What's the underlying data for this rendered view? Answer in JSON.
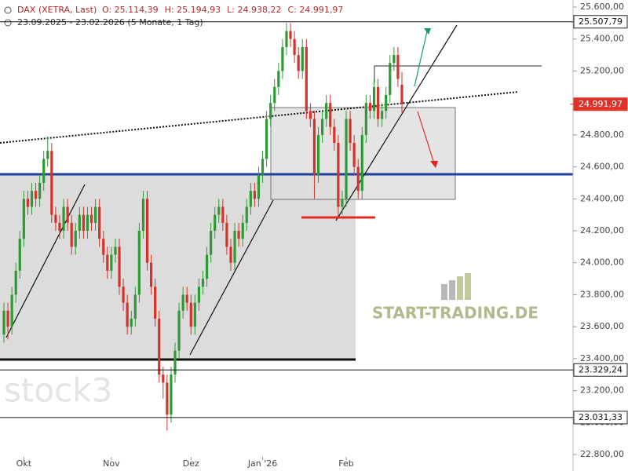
{
  "chart_data": {
    "type": "candlestick",
    "title": "DAX (XETRA, Last)",
    "header_labels": [
      "O: 25.114,39",
      "H: 25.194,93",
      "L: 24.938,22",
      "C: 24.991,97"
    ],
    "subtitle": "23.09.2025 - 23.02.2026 (5 Monate, 1 Tag)",
    "watermarks": [
      "START-TRADING.DE",
      "stock3"
    ],
    "up_color": "#2f9a35",
    "down_color": "#d2332b",
    "ylim": [
      22800,
      25600
    ],
    "yticks": [
      {
        "value": 22800,
        "label": "22.800,00"
      },
      {
        "value": 23000,
        "label": "23.000,00"
      },
      {
        "value": 23200,
        "label": "23.200,00"
      },
      {
        "value": 23400,
        "label": "23.400,00"
      },
      {
        "value": 23600,
        "label": "23.600,00"
      },
      {
        "value": 23800,
        "label": "23.800,00"
      },
      {
        "value": 24000,
        "label": "24.000,00"
      },
      {
        "value": 24200,
        "label": "24.200,00"
      },
      {
        "value": 24400,
        "label": "24.400,00"
      },
      {
        "value": 24600,
        "label": "24.600,00"
      },
      {
        "value": 24800,
        "label": "24.800,00"
      },
      {
        "value": 25000,
        "label": "25.000,00"
      },
      {
        "value": 25200,
        "label": "25.200,00"
      },
      {
        "value": 25400,
        "label": "25.400,00"
      },
      {
        "value": 25600,
        "label": "25.600,00"
      }
    ],
    "levels": [
      {
        "value": 25507.79,
        "label": "25.507,79",
        "color": "#ffffff"
      },
      {
        "value": 24991.97,
        "label": "24.991,97",
        "color": "#e0312a"
      },
      {
        "value": 23329.24,
        "label": "23.329,24",
        "color": "#ffffff"
      },
      {
        "value": 23031.33,
        "label": "23.031,33",
        "color": "#ffffff"
      }
    ],
    "categories": [
      null,
      null,
      null,
      null,
      null,
      "Okt",
      null,
      null,
      null,
      null,
      null,
      null,
      null,
      null,
      null,
      null,
      null,
      null,
      null,
      null,
      null,
      null,
      null,
      null,
      null,
      null,
      null,
      "Nov",
      null,
      null,
      null,
      null,
      null,
      null,
      null,
      null,
      null,
      null,
      null,
      null,
      null,
      null,
      null,
      null,
      null,
      null,
      null,
      "Dez",
      null,
      null,
      null,
      null,
      null,
      null,
      null,
      null,
      null,
      null,
      null,
      null,
      null,
      null,
      null,
      null,
      null,
      "Jan '26",
      null,
      null,
      null,
      null,
      null,
      null,
      null,
      null,
      null,
      null,
      null,
      null,
      null,
      null,
      null,
      null,
      null,
      null,
      null,
      null,
      "Feb",
      null,
      null,
      null,
      null,
      null,
      null,
      null,
      null,
      null,
      null,
      null,
      null,
      null,
      null
    ],
    "ohlc": [
      [
        23550,
        23750,
        23500,
        23700
      ],
      [
        23700,
        23750,
        23520,
        23600
      ],
      [
        23600,
        23850,
        23550,
        23800
      ],
      [
        23800,
        24000,
        23750,
        23950
      ],
      [
        23950,
        24200,
        23900,
        24150
      ],
      [
        24150,
        24450,
        24100,
        24400
      ],
      [
        24400,
        24450,
        24300,
        24350
      ],
      [
        24350,
        24500,
        24300,
        24450
      ],
      [
        24450,
        24500,
        24350,
        24400
      ],
      [
        24400,
        24550,
        24350,
        24500
      ],
      [
        24500,
        24700,
        24450,
        24650
      ],
      [
        24650,
        24790,
        24600,
        24700
      ],
      [
        24700,
        24750,
        24250,
        24300
      ],
      [
        24300,
        24350,
        24200,
        24250
      ],
      [
        24250,
        24300,
        24150,
        24200
      ],
      [
        24200,
        24400,
        24150,
        24350
      ],
      [
        24350,
        24400,
        24200,
        24250
      ],
      [
        24250,
        24300,
        24050,
        24100
      ],
      [
        24100,
        24250,
        24050,
        24200
      ],
      [
        24200,
        24350,
        24150,
        24300
      ],
      [
        24300,
        24350,
        24150,
        24200
      ],
      [
        24200,
        24350,
        24150,
        24300
      ],
      [
        24300,
        24350,
        24200,
        24250
      ],
      [
        24250,
        24400,
        24200,
        24350
      ],
      [
        24350,
        24400,
        24100,
        24150
      ],
      [
        24150,
        24200,
        24000,
        24050
      ],
      [
        24050,
        24100,
        23900,
        23950
      ],
      [
        23950,
        24100,
        23900,
        24050
      ],
      [
        24050,
        24150,
        24000,
        24100
      ],
      [
        24100,
        24150,
        23800,
        23850
      ],
      [
        23850,
        23900,
        23700,
        23750
      ],
      [
        23750,
        23800,
        23550,
        23600
      ],
      [
        23600,
        23700,
        23550,
        23650
      ],
      [
        23650,
        23850,
        23600,
        23800
      ],
      [
        23800,
        24250,
        23750,
        24200
      ],
      [
        24200,
        24450,
        24150,
        24400
      ],
      [
        24400,
        24450,
        23950,
        24000
      ],
      [
        24000,
        24050,
        23800,
        23850
      ],
      [
        23850,
        23900,
        23600,
        23650
      ],
      [
        23650,
        23700,
        23250,
        23300
      ],
      [
        23300,
        23350,
        23150,
        23250
      ],
      [
        23250,
        23300,
        22950,
        23050
      ],
      [
        23050,
        23350,
        23000,
        23300
      ],
      [
        23300,
        23500,
        23250,
        23450
      ],
      [
        23450,
        23750,
        23400,
        23700
      ],
      [
        23700,
        23850,
        23650,
        23800
      ],
      [
        23800,
        23850,
        23700,
        23750
      ],
      [
        23750,
        23800,
        23550,
        23600
      ],
      [
        23600,
        23800,
        23550,
        23750
      ],
      [
        23750,
        23900,
        23700,
        23850
      ],
      [
        23850,
        23950,
        23800,
        23900
      ],
      [
        23900,
        24100,
        23850,
        24050
      ],
      [
        24050,
        24250,
        24000,
        24200
      ],
      [
        24200,
        24350,
        24150,
        24300
      ],
      [
        24300,
        24400,
        24250,
        24350
      ],
      [
        24350,
        24400,
        24200,
        24250
      ],
      [
        24250,
        24300,
        24050,
        24100
      ],
      [
        24100,
        24150,
        23950,
        24000
      ],
      [
        24000,
        24250,
        23950,
        24200
      ],
      [
        24200,
        24250,
        24100,
        24150
      ],
      [
        24150,
        24300,
        24100,
        24250
      ],
      [
        24250,
        24400,
        24200,
        24350
      ],
      [
        24350,
        24500,
        24300,
        24450
      ],
      [
        24450,
        24500,
        24350,
        24400
      ],
      [
        24400,
        24600,
        24350,
        24550
      ],
      [
        24550,
        24700,
        24500,
        24650
      ],
      [
        24650,
        24950,
        24600,
        24900
      ],
      [
        24900,
        25050,
        24850,
        25000
      ],
      [
        25000,
        25150,
        24950,
        25100
      ],
      [
        25100,
        25250,
        25050,
        25200
      ],
      [
        25200,
        25400,
        25150,
        25350
      ],
      [
        25350,
        25500,
        25300,
        25450
      ],
      [
        25450,
        25500,
        25350,
        25400
      ],
      [
        25400,
        25450,
        25250,
        25300
      ],
      [
        25300,
        25350,
        25150,
        25200
      ],
      [
        25200,
        25400,
        25150,
        25350
      ],
      [
        25350,
        25400,
        24900,
        24950
      ],
      [
        24950,
        25000,
        24850,
        24900
      ],
      [
        24900,
        24950,
        24400,
        24550
      ],
      [
        24550,
        24850,
        24500,
        24800
      ],
      [
        24800,
        24950,
        24750,
        24900
      ],
      [
        24900,
        25050,
        24850,
        25000
      ],
      [
        25000,
        25050,
        24800,
        24850
      ],
      [
        24850,
        24900,
        24700,
        24750
      ],
      [
        24750,
        24800,
        24280,
        24350
      ],
      [
        24350,
        24450,
        24300,
        24400
      ],
      [
        24400,
        24950,
        24350,
        24900
      ],
      [
        24900,
        24950,
        24700,
        24750
      ],
      [
        24750,
        24800,
        24550,
        24600
      ],
      [
        24600,
        24650,
        24400,
        24450
      ],
      [
        24450,
        24850,
        24400,
        24800
      ],
      [
        24800,
        25050,
        24750,
        25000
      ],
      [
        25000,
        25050,
        24900,
        24950
      ],
      [
        24950,
        25150,
        24900,
        25100
      ],
      [
        25100,
        25150,
        24850,
        24900
      ],
      [
        24900,
        25000,
        24850,
        24950
      ],
      [
        24950,
        25100,
        24900,
        25050
      ],
      [
        25050,
        25300,
        25000,
        25250
      ],
      [
        25250,
        25350,
        25200,
        25300
      ],
      [
        25300,
        25350,
        25100,
        25150
      ],
      [
        25114.39,
        25194.93,
        24938.22,
        24991.97
      ]
    ]
  }
}
